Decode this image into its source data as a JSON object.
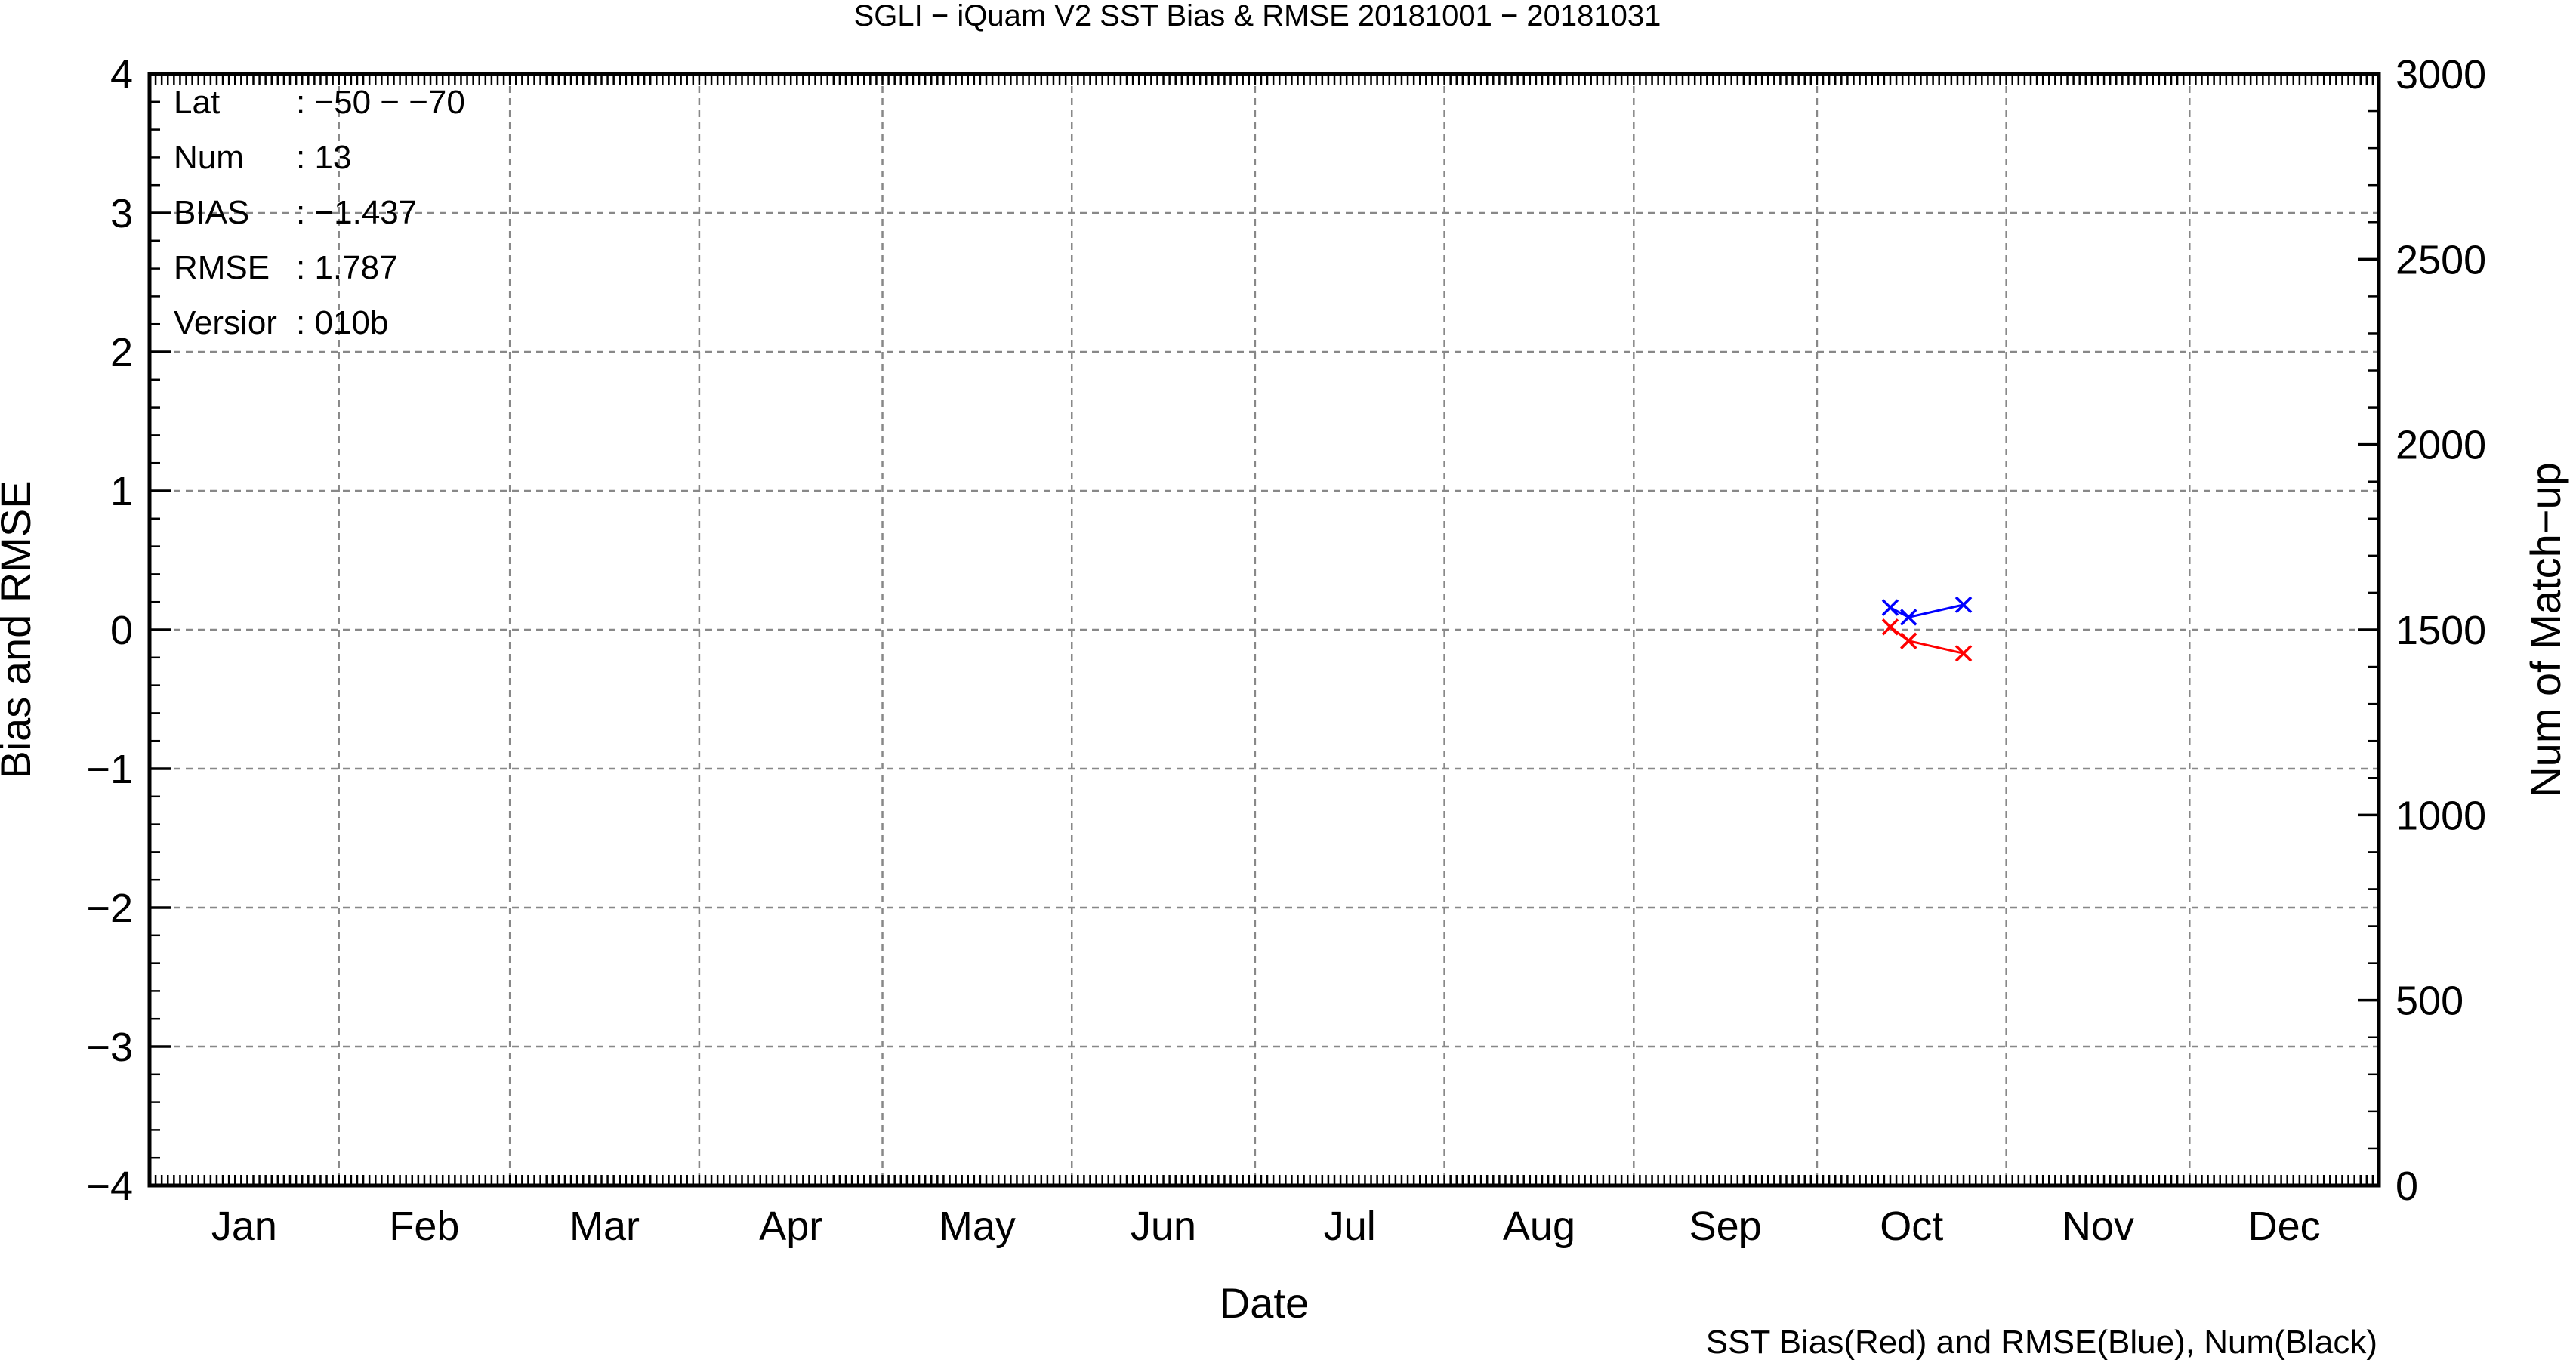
{
  "chart_data": {
    "type": "line",
    "title": "SGLI − iQuam V2 SST Bias & RMSE 20181001 − 20181031",
    "xlabel": "Date",
    "ylabel": "Bias and RMSE",
    "y2label": "Num of Match−up",
    "ylim": [
      -4,
      4
    ],
    "y2lim": [
      0,
      3000
    ],
    "xlim": [
      0,
      365
    ],
    "x_unit": "day of year",
    "grid": true,
    "y_ticks": [
      {
        "value": -4,
        "label": "−4"
      },
      {
        "value": -3,
        "label": "−3"
      },
      {
        "value": -2,
        "label": "−2"
      },
      {
        "value": -1,
        "label": "−1"
      },
      {
        "value": 0,
        "label": "0"
      },
      {
        "value": 1,
        "label": "1"
      },
      {
        "value": 2,
        "label": "2"
      },
      {
        "value": 3,
        "label": "3"
      },
      {
        "value": 4,
        "label": "4"
      }
    ],
    "y2_ticks": [
      {
        "value": 0,
        "label": "0"
      },
      {
        "value": 500,
        "label": "500"
      },
      {
        "value": 1000,
        "label": "1000"
      },
      {
        "value": 1500,
        "label": "1500"
      },
      {
        "value": 2000,
        "label": "2000"
      },
      {
        "value": 2500,
        "label": "2500"
      },
      {
        "value": 3000,
        "label": "3000"
      }
    ],
    "months": [
      {
        "label": "Jan",
        "start": 0,
        "end": 31
      },
      {
        "label": "Feb",
        "start": 31,
        "end": 59
      },
      {
        "label": "Mar",
        "start": 59,
        "end": 90
      },
      {
        "label": "Apr",
        "start": 90,
        "end": 120
      },
      {
        "label": "May",
        "start": 120,
        "end": 151
      },
      {
        "label": "Jun",
        "start": 151,
        "end": 181
      },
      {
        "label": "Jul",
        "start": 181,
        "end": 212
      },
      {
        "label": "Aug",
        "start": 212,
        "end": 243
      },
      {
        "label": "Sep",
        "start": 243,
        "end": 273
      },
      {
        "label": "Oct",
        "start": 273,
        "end": 304
      },
      {
        "label": "Nov",
        "start": 304,
        "end": 334
      },
      {
        "label": "Dec",
        "start": 334,
        "end": 365
      }
    ],
    "series": [
      {
        "name": "SST Bias",
        "color": "#ff0000",
        "marker": "x",
        "points": [
          {
            "x": 285,
            "y": 0.02
          },
          {
            "x": 288,
            "y": -0.08
          },
          {
            "x": 297,
            "y": -0.17
          }
        ]
      },
      {
        "name": "RMSE",
        "color": "#0000ff",
        "marker": "x",
        "points": [
          {
            "x": 285,
            "y": 0.16
          },
          {
            "x": 288,
            "y": 0.09
          },
          {
            "x": 297,
            "y": 0.18
          }
        ]
      }
    ],
    "info": [
      {
        "key": "Lat",
        "value": ": −50 − −70"
      },
      {
        "key": "Num",
        "value": ": 13"
      },
      {
        "key": "BIAS",
        "value": ": −1.437"
      },
      {
        "key": "RMSE",
        "value": ": 1.787"
      },
      {
        "key": "Versior",
        "value": ": 010b"
      }
    ],
    "footer": "SST Bias(Red) and RMSE(Blue), Num(Black)"
  }
}
